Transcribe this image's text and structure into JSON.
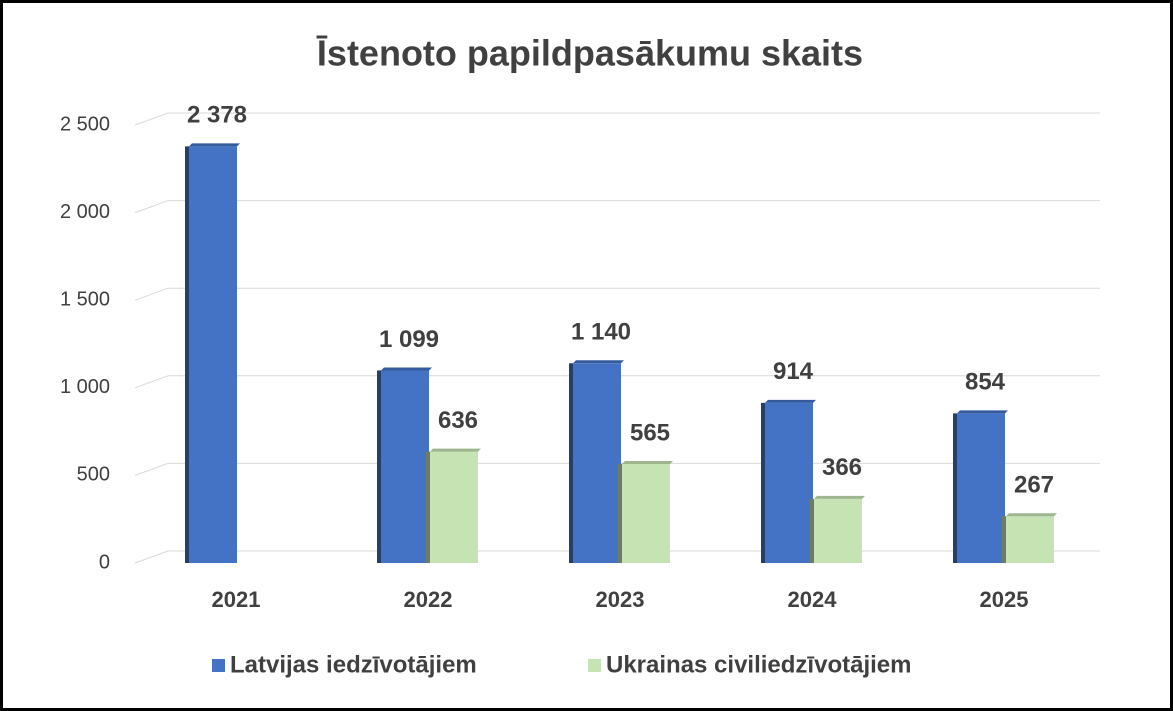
{
  "chart_data": {
    "type": "bar",
    "title": "Īstenoto papildpasākumu skaits",
    "categories": [
      "2021",
      "2022",
      "2023",
      "2024",
      "2025"
    ],
    "series": [
      {
        "name": "Latvijas iedzīvotājiem",
        "color": "#4472c4",
        "values": [
          2378,
          1099,
          1140,
          914,
          854
        ],
        "value_labels": [
          "2 378",
          "1 099",
          "1 140",
          "914",
          "854"
        ]
      },
      {
        "name": "Ukrainas civiliedzīvotājiem",
        "color": "#c5e3b3",
        "values": [
          null,
          636,
          565,
          366,
          267
        ],
        "value_labels": [
          null,
          "636",
          "565",
          "366",
          "267"
        ]
      }
    ],
    "ylim": [
      0,
      2500
    ],
    "yticks": [
      0,
      500,
      {
        "value": 1000,
        "label": "1 000"
      },
      {
        "value": 1500,
        "label": "1 500"
      },
      {
        "value": 2000,
        "label": "2 000"
      },
      {
        "value": 2500,
        "label": "2 500"
      }
    ],
    "grid": true,
    "legend": "bottom"
  }
}
